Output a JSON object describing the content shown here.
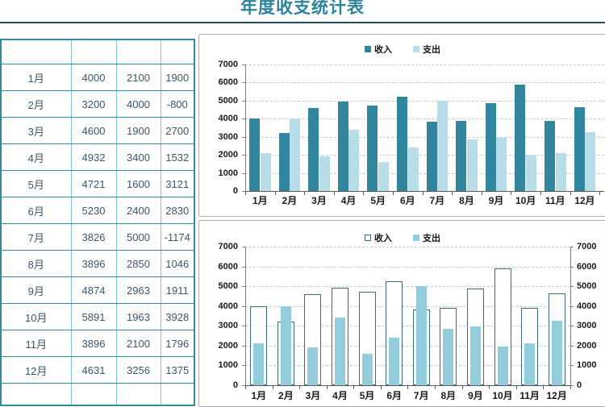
{
  "title": "年度收支统计表",
  "table": {
    "header": [
      "",
      "",
      "",
      ""
    ],
    "rows": [
      [
        "1月",
        "4000",
        "2100",
        "1900"
      ],
      [
        "2月",
        "3200",
        "4000",
        "-800"
      ],
      [
        "3月",
        "4600",
        "1900",
        "2700"
      ],
      [
        "4月",
        "4932",
        "3400",
        "1532"
      ],
      [
        "5月",
        "4721",
        "1600",
        "3121"
      ],
      [
        "6月",
        "5230",
        "2400",
        "2830"
      ],
      [
        "7月",
        "3826",
        "5000",
        "-1174"
      ],
      [
        "8月",
        "3896",
        "2850",
        "1046"
      ],
      [
        "9月",
        "4874",
        "2963",
        "1911"
      ],
      [
        "10月",
        "5891",
        "1963",
        "3928"
      ],
      [
        "11月",
        "3896",
        "2100",
        "1796"
      ],
      [
        "12月",
        "4631",
        "3256",
        "1375"
      ]
    ]
  },
  "chart_data": [
    {
      "type": "bar",
      "layout": "grouped",
      "title": "",
      "categories": [
        "1月",
        "2月",
        "3月",
        "4月",
        "5月",
        "6月",
        "7月",
        "8月",
        "9月",
        "10月",
        "11月",
        "12月"
      ],
      "series": [
        {
          "name": "收入",
          "values": [
            4000,
            3200,
            4600,
            4932,
            4721,
            5230,
            3826,
            3896,
            4874,
            5891,
            3896,
            4631
          ],
          "color": "#31859C",
          "swatch": "filled"
        },
        {
          "name": "支出",
          "values": [
            2100,
            4000,
            1900,
            3400,
            1600,
            2400,
            5000,
            2850,
            2963,
            1963,
            2100,
            3256
          ],
          "color": "#B7DEE8",
          "swatch": "filled"
        }
      ],
      "ylim": [
        0,
        7000
      ],
      "ytick_interval": 1000,
      "grid": true,
      "legend_position": "top",
      "right_axis": false
    },
    {
      "type": "bar",
      "layout": "overlapped",
      "title": "",
      "categories": [
        "1月",
        "2月",
        "3月",
        "4月",
        "5月",
        "6月",
        "7月",
        "8月",
        "9月",
        "10月",
        "11月",
        "12月"
      ],
      "series": [
        {
          "name": "收入",
          "values": [
            4000,
            3200,
            4600,
            4932,
            4721,
            5230,
            3826,
            3896,
            4874,
            5891,
            3896,
            4631
          ],
          "color": "#FFFFFF",
          "border_color": "#3A6B7E",
          "swatch": "outline"
        },
        {
          "name": "支出",
          "values": [
            2100,
            4000,
            1900,
            3400,
            1600,
            2400,
            5000,
            2850,
            2963,
            1963,
            2100,
            3256
          ],
          "color": "#93CDDD",
          "swatch": "filled"
        }
      ],
      "ylim": [
        0,
        7000
      ],
      "ytick_interval": 1000,
      "grid": true,
      "legend_position": "top",
      "right_axis": true
    }
  ]
}
